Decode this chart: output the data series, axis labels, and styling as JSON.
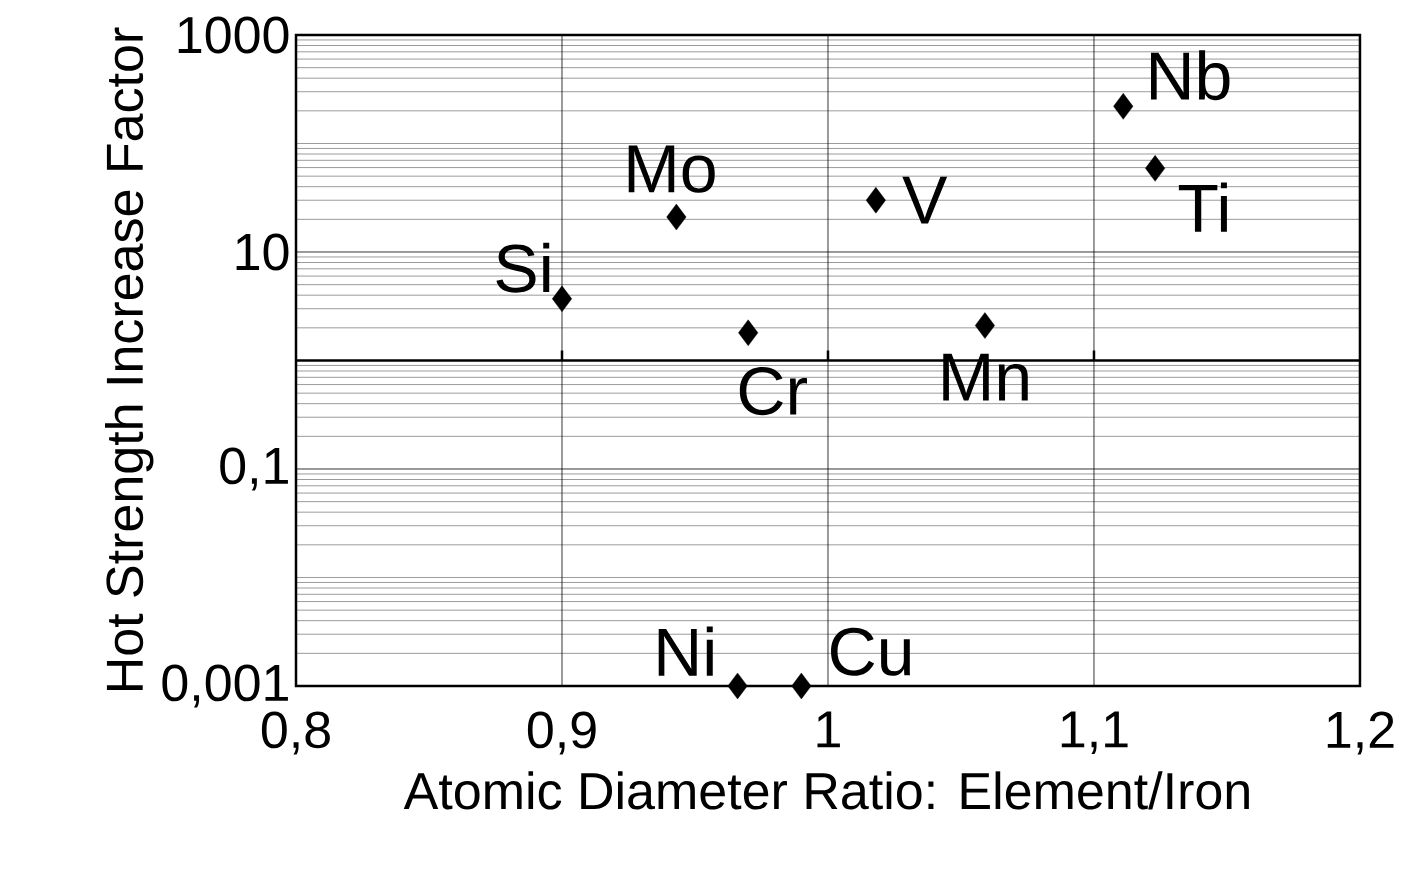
{
  "chart_data": {
    "type": "scatter",
    "xlabel": "Atomic Diameter Ratio: Element/Iron",
    "ylabel": "Hot Strength Increase Factor",
    "log": "y",
    "grid": true,
    "marker": "diamond",
    "xlim": [
      0.8,
      1.2
    ],
    "xticks": [
      {
        "value": 0.8,
        "label": "0,8"
      },
      {
        "value": 0.9,
        "label": "0,9"
      },
      {
        "value": 1,
        "label": "1"
      },
      {
        "value": 1.1,
        "label": "1,1"
      },
      {
        "value": 1.2,
        "label": "1,2"
      }
    ],
    "ylim": [
      0.001,
      1000
    ],
    "yticks": [
      {
        "value": 0.001,
        "label": "0,001"
      },
      {
        "value": 0.1,
        "label": "0,1"
      },
      {
        "value": 10,
        "label": "10"
      },
      {
        "value": 1000,
        "label": "1000"
      }
    ],
    "series": [
      {
        "color": "#000000",
        "x": [
          0.9,
          0.943,
          0.97,
          1.018,
          1.059,
          1.111,
          1.123,
          0.966,
          0.99
        ],
        "values": [
          3.7,
          21,
          1.8,
          30,
          2.1,
          220,
          59,
          0.001,
          0.001
        ]
      }
    ],
    "ref_lines": [
      {
        "axis": "y",
        "value": 1,
        "color": "#000000"
      }
    ],
    "annotations": [
      {
        "text": "Si",
        "x": 0.9,
        "y": 3.7
      },
      {
        "text": "Mo",
        "x": 0.943,
        "y": 21
      },
      {
        "text": "Cr",
        "x": 0.97,
        "y": 1.8
      },
      {
        "text": "V",
        "x": 1.018,
        "y": 30
      },
      {
        "text": "Mn",
        "x": 1.059,
        "y": 2.1
      },
      {
        "text": "Nb",
        "x": 1.111,
        "y": 220
      },
      {
        "text": "Ti",
        "x": 1.123,
        "y": 59
      },
      {
        "text": "Ni",
        "x": 0.966,
        "y": 0.001
      },
      {
        "text": "Cu",
        "x": 0.99,
        "y": 0.001
      }
    ]
  }
}
